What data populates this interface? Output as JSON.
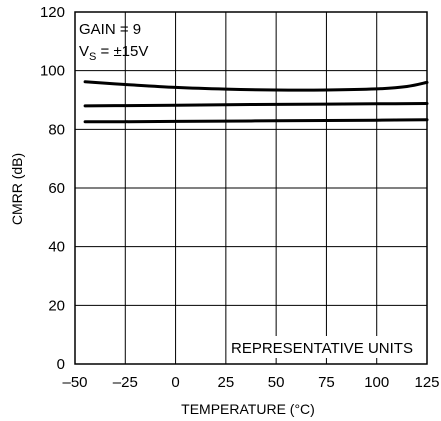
{
  "chart_data": {
    "type": "line",
    "xlabel": "TEMPERATURE (°C)",
    "ylabel": "CMRR (dB)",
    "xlim": [
      -50,
      125
    ],
    "ylim": [
      0,
      120
    ],
    "x_ticks": [
      -50,
      -25,
      0,
      25,
      50,
      75,
      100,
      125
    ],
    "x_tick_labels": [
      "–50",
      "–25",
      "0",
      "25",
      "50",
      "75",
      "100",
      "125"
    ],
    "y_ticks": [
      0,
      20,
      40,
      60,
      80,
      100,
      120
    ],
    "y_tick_labels": [
      "0",
      "20",
      "40",
      "60",
      "80",
      "100",
      "120"
    ],
    "grid": true,
    "annotations": {
      "gain": "GAIN = 9",
      "supply_main": "V",
      "supply_sub": "S",
      "supply_rest": " = ±15V",
      "units": "REPRESENTATIVE UNITS"
    },
    "series": [
      {
        "x": [
          -45,
          -25,
          0,
          25,
          50,
          75,
          100,
          115,
          125
        ],
        "y": [
          96.2,
          95.3,
          94.3,
          93.7,
          93.4,
          93.4,
          93.8,
          94.6,
          96.0
        ]
      },
      {
        "x": [
          -45,
          -25,
          0,
          25,
          50,
          75,
          100,
          125
        ],
        "y": [
          88.0,
          88.1,
          88.2,
          88.4,
          88.5,
          88.6,
          88.7,
          88.8
        ]
      },
      {
        "x": [
          -45,
          -25,
          0,
          25,
          50,
          75,
          100,
          125
        ],
        "y": [
          82.6,
          82.6,
          82.7,
          82.8,
          82.9,
          83.0,
          83.1,
          83.3
        ]
      }
    ]
  }
}
